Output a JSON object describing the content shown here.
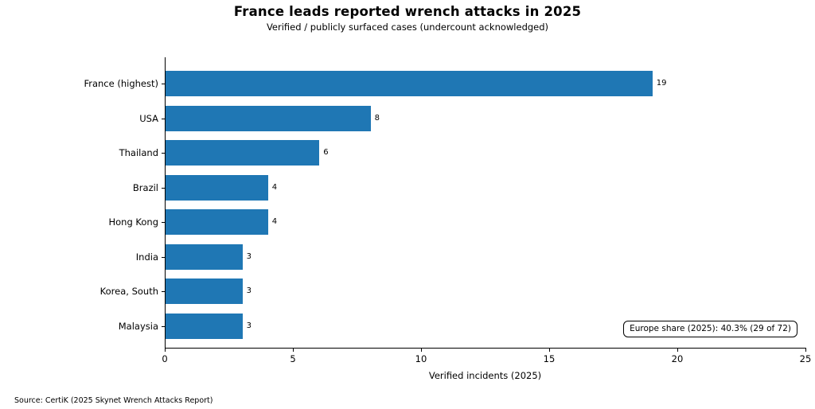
{
  "source": "Source: CertiK (2025 Skynet Wrench Attacks Report)",
  "colors": {
    "bar": "#1f77b4",
    "axis": "#000000",
    "text": "#000000",
    "background": "#ffffff"
  },
  "chart_data": {
    "type": "bar",
    "orientation": "horizontal",
    "title": "France leads reported wrench attacks in 2025",
    "subtitle": "Verified / publicly surfaced cases (undercount acknowledged)",
    "xlabel": "Verified incidents (2025)",
    "ylabel": "",
    "categories": [
      "France (highest)",
      "USA",
      "Thailand",
      "Brazil",
      "Hong Kong",
      "India",
      "Korea, South",
      "Malaysia"
    ],
    "values": [
      19,
      8,
      6,
      4,
      4,
      3,
      3,
      3
    ],
    "value_labels": [
      "19",
      "8",
      "6",
      "4",
      "4",
      "3",
      "3",
      "3"
    ],
    "xlim": [
      0,
      25
    ],
    "xticks": [
      "0",
      "5",
      "10",
      "15",
      "20",
      "25"
    ],
    "grid": false,
    "legend": null,
    "bar_color": "#1f77b4",
    "annotation": "Europe share (2025): 40.3% (29 of 72)"
  }
}
